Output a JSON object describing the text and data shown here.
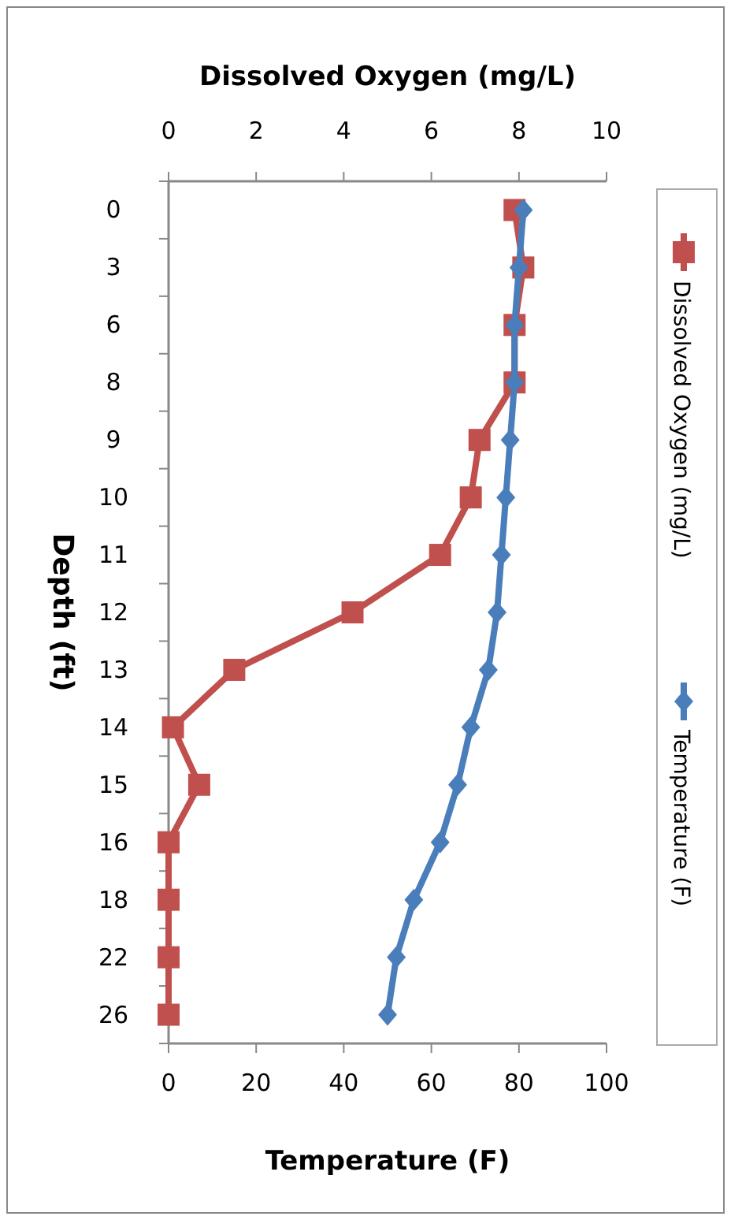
{
  "chart_data": {
    "type": "line",
    "orientation": "horizontal",
    "xlabel": "Temperature (F)",
    "x2label": "Dissolved Oxygen (mg/L)",
    "ylabel": "Depth (ft)",
    "categories": [
      "0",
      "3",
      "6",
      "8",
      "9",
      "10",
      "11",
      "12",
      "13",
      "14",
      "15",
      "16",
      "18",
      "22",
      "26"
    ],
    "xlim": [
      0,
      100
    ],
    "xticks": [
      0,
      20,
      40,
      60,
      80,
      100
    ],
    "x2lim": [
      0,
      10
    ],
    "x2ticks": [
      0,
      2,
      4,
      6,
      8,
      10
    ],
    "series": [
      {
        "name": "Dissolved Oxygen (mg/L)",
        "color": "#c0504d",
        "axis": "x2",
        "marker": "square",
        "values": [
          7.9,
          8.1,
          7.9,
          7.9,
          7.1,
          6.9,
          6.2,
          4.2,
          1.5,
          0.1,
          0.7,
          0,
          0,
          0,
          0
        ]
      },
      {
        "name": "Temperature (F)",
        "color": "#4a7ebb",
        "marker": "diamond",
        "values": [
          81,
          80,
          79,
          79,
          78,
          77,
          76,
          75,
          73,
          69,
          66,
          62,
          56,
          52,
          50
        ]
      }
    ],
    "grid": false,
    "legend": "right",
    "line_style": "solid"
  }
}
